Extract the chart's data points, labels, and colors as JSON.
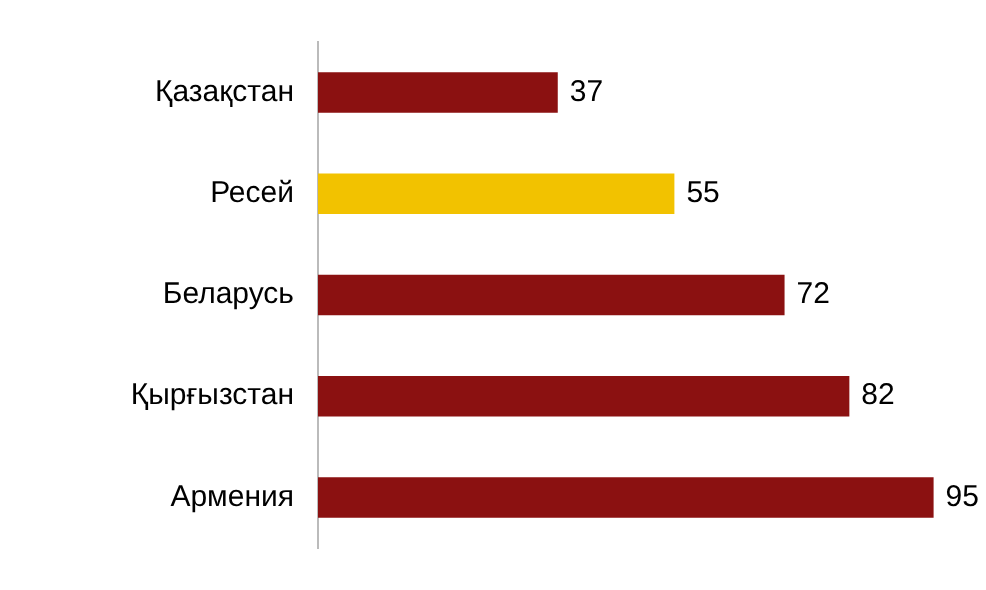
{
  "chart_data": {
    "type": "bar",
    "orientation": "horizontal",
    "categories": [
      "Қазақстан",
      "Ресей",
      "Беларусь",
      "Қырғызстан",
      "Армения"
    ],
    "values": [
      37,
      55,
      72,
      82,
      95
    ],
    "colors": [
      "#8b1111",
      "#f2c200",
      "#8b1111",
      "#8b1111",
      "#8b1111"
    ],
    "tick_labels": "y",
    "grid": false,
    "legend": false,
    "data_labels": true
  }
}
